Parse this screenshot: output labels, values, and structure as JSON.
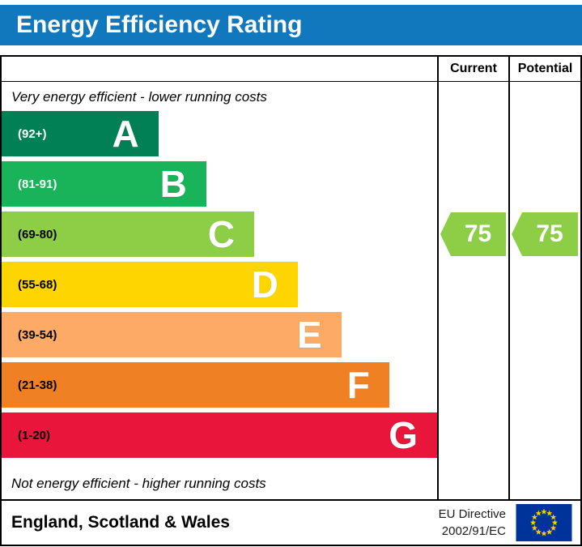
{
  "header": {
    "title": "Energy Efficiency Rating",
    "bg_color": "#1278be"
  },
  "columns": {
    "current": "Current",
    "potential": "Potential"
  },
  "notes": {
    "top": "Very energy efficient - lower running costs",
    "bottom": "Not energy efficient - higher running costs"
  },
  "bands": [
    {
      "letter": "A",
      "range": "(92+)",
      "color": "#008054",
      "width_pct": 36,
      "range_text_color": "#ffffff"
    },
    {
      "letter": "B",
      "range": "(81-91)",
      "color": "#19b459",
      "width_pct": 47,
      "range_text_color": "#ffffff"
    },
    {
      "letter": "C",
      "range": "(69-80)",
      "color": "#8dce46",
      "width_pct": 58,
      "range_text_color": "#000000"
    },
    {
      "letter": "D",
      "range": "(55-68)",
      "color": "#ffd500",
      "width_pct": 68,
      "range_text_color": "#000000"
    },
    {
      "letter": "E",
      "range": "(39-54)",
      "color": "#fcaa65",
      "width_pct": 78,
      "range_text_color": "#000000"
    },
    {
      "letter": "F",
      "range": "(21-38)",
      "color": "#ef8023",
      "width_pct": 89,
      "range_text_color": "#000000"
    },
    {
      "letter": "G",
      "range": "(1-20)",
      "color": "#e9153b",
      "width_pct": 100,
      "range_text_color": "#000000"
    }
  ],
  "ratings": {
    "current": {
      "value": "75",
      "band": "C",
      "color": "#8dce46"
    },
    "potential": {
      "value": "75",
      "band": "C",
      "color": "#8dce46"
    }
  },
  "footer": {
    "region": "England, Scotland & Wales",
    "directive_line1": "EU Directive",
    "directive_line2": "2002/91/EC",
    "flag_colors": {
      "field": "#003399",
      "stars": "#ffcc00"
    }
  },
  "chart_data": {
    "type": "bar",
    "title": "Energy Efficiency Rating",
    "categories": [
      "A (92+)",
      "B (81-91)",
      "C (69-80)",
      "D (55-68)",
      "E (39-54)",
      "F (21-38)",
      "G (1-20)"
    ],
    "values": [
      36,
      47,
      58,
      68,
      78,
      89,
      100
    ],
    "band_colors": [
      "#008054",
      "#19b459",
      "#8dce46",
      "#ffd500",
      "#fcaa65",
      "#ef8023",
      "#e9153b"
    ],
    "series": [
      {
        "name": "Current rating",
        "band": "C",
        "value": 75
      },
      {
        "name": "Potential rating",
        "band": "C",
        "value": 75
      }
    ],
    "xlabel": "",
    "ylabel": "",
    "top_annotation": "Very energy efficient - lower running costs",
    "bottom_annotation": "Not energy efficient - higher running costs",
    "footnote": "England, Scotland & Wales — EU Directive 2002/91/EC"
  }
}
